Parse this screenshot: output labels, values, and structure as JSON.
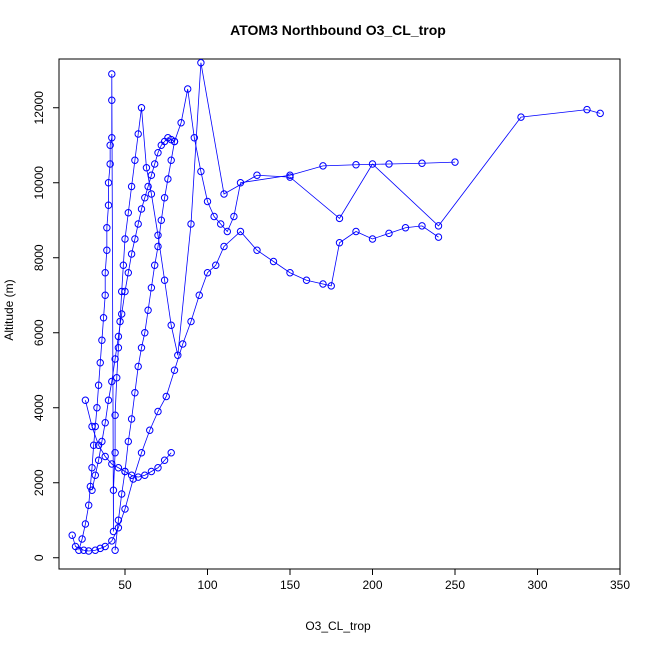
{
  "chart_data": {
    "type": "scatter",
    "title": "ATOM3 Northbound O3_CL_trop",
    "xlabel": "O3_CL_trop",
    "ylabel": "Altitude (m)",
    "xlim": [
      10,
      350
    ],
    "ylim": [
      -300,
      13300
    ],
    "xticks": [
      50,
      100,
      150,
      200,
      250,
      300,
      350
    ],
    "yticks": [
      0,
      2000,
      4000,
      6000,
      8000,
      10000,
      12000
    ],
    "grid": false,
    "legend": "none",
    "color": "#0000ff",
    "marker": "open-circle",
    "connect_points": true,
    "series": [
      {
        "x": [
          22,
          24,
          26,
          28,
          29,
          30,
          31,
          32,
          33,
          34,
          35,
          36,
          37,
          38,
          38,
          39,
          39,
          40,
          40,
          41,
          41,
          42,
          42,
          42,
          43,
          43,
          44,
          44,
          45,
          46,
          47,
          48,
          49,
          50,
          52,
          54,
          56,
          58,
          60,
          63,
          66,
          70,
          74,
          78,
          82,
          90,
          96,
          110,
          130,
          150,
          180,
          200,
          240,
          290,
          330,
          338
        ],
        "y": [
          200,
          500,
          900,
          1400,
          1900,
          2400,
          3000,
          3500,
          4000,
          4600,
          5200,
          5800,
          6400,
          7000,
          7600,
          8200,
          8800,
          9400,
          10000,
          10500,
          11000,
          11200,
          12200,
          12900,
          700,
          1800,
          2800,
          3800,
          4800,
          5600,
          6300,
          7100,
          7800,
          8500,
          9200,
          9900,
          10600,
          11300,
          12000,
          10400,
          9700,
          8600,
          7400,
          6200,
          5400,
          8900,
          13200,
          9700,
          10200,
          10150,
          9050,
          10500,
          8850,
          11750,
          11950,
          11850
        ]
      },
      {
        "x": [
          18,
          20,
          25,
          28,
          32,
          35,
          38,
          42,
          46,
          50,
          55,
          60,
          65,
          70,
          75,
          80,
          85,
          90,
          95,
          100,
          105,
          110,
          120,
          130,
          140,
          150,
          160,
          170,
          175,
          180,
          190,
          200,
          210,
          220,
          230,
          240
        ],
        "y": [
          600,
          300,
          200,
          180,
          200,
          250,
          300,
          450,
          800,
          1300,
          2100,
          2800,
          3400,
          3900,
          4300,
          5000,
          5700,
          6300,
          7000,
          7600,
          7800,
          8300,
          8700,
          8200,
          7900,
          7600,
          7400,
          7300,
          7250,
          8400,
          8700,
          8500,
          8650,
          8800,
          8850,
          8550
        ]
      },
      {
        "x": [
          44,
          46,
          48,
          50,
          52,
          54,
          56,
          58,
          60,
          62,
          64,
          66,
          68,
          70,
          72,
          74,
          76,
          78,
          80,
          84,
          88,
          92,
          96,
          100,
          104,
          108,
          112,
          116,
          120,
          150,
          170,
          190,
          210,
          230,
          250
        ],
        "y": [
          200,
          1000,
          1700,
          2300,
          3100,
          3700,
          4400,
          5100,
          5600,
          6000,
          6600,
          7200,
          7800,
          8300,
          9000,
          9600,
          10100,
          10600,
          11100,
          11600,
          12500,
          11200,
          10300,
          9500,
          9100,
          8900,
          8700,
          9100,
          10000,
          10200,
          10450,
          10480,
          10500,
          10520,
          10550
        ]
      },
      {
        "x": [
          30,
          32,
          34,
          36,
          38,
          40,
          42,
          44,
          46,
          48,
          50,
          52,
          54,
          56,
          58,
          60,
          62,
          64,
          66,
          68,
          70,
          72,
          74,
          76,
          78,
          80
        ],
        "y": [
          1800,
          2200,
          2600,
          3100,
          3600,
          4200,
          4700,
          5300,
          5900,
          6500,
          7100,
          7600,
          8100,
          8500,
          8900,
          9300,
          9600,
          9900,
          10200,
          10500,
          10800,
          11000,
          11100,
          11200,
          11150,
          11100
        ]
      },
      {
        "x": [
          26,
          30,
          34,
          38,
          42,
          46,
          50,
          54,
          58,
          62,
          66,
          70,
          74,
          78
        ],
        "y": [
          4200,
          3500,
          3000,
          2700,
          2500,
          2400,
          2300,
          2200,
          2150,
          2200,
          2300,
          2400,
          2600,
          2800
        ]
      }
    ]
  }
}
